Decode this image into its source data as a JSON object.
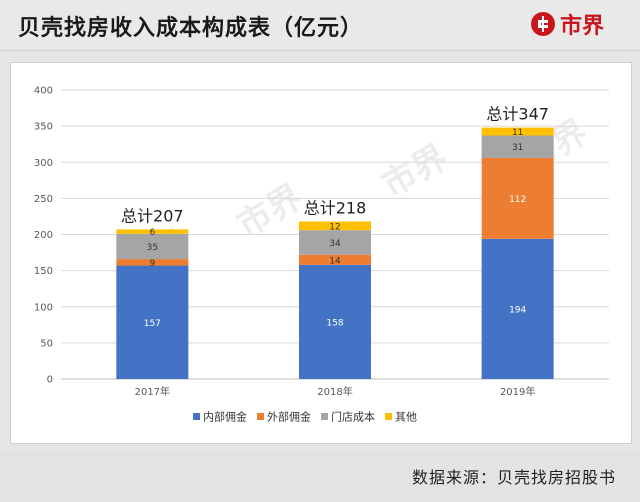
{
  "header": {
    "title": "贝壳找房收入成本构成表（亿元）"
  },
  "logo": {
    "text": "市界",
    "icon": "brand-logo-icon",
    "color": "#c8161d"
  },
  "watermark": "市界",
  "footer": {
    "source": "数据来源：贝壳找房招股书"
  },
  "chart_data": {
    "type": "bar",
    "stacked": true,
    "title": "贝壳找房收入成本构成表（亿元）",
    "xlabel": "",
    "ylabel": "",
    "ylim": [
      0,
      400
    ],
    "yticks": [
      0,
      50,
      100,
      150,
      200,
      250,
      300,
      350,
      400
    ],
    "grid": true,
    "legend": "bottom",
    "categories": [
      "2017年",
      "2018年",
      "2019年"
    ],
    "series": [
      {
        "name": "内部佣金",
        "color": "#4472c4",
        "values": [
          157,
          158,
          194
        ]
      },
      {
        "name": "外部佣金",
        "color": "#ed7d31",
        "values": [
          9,
          14,
          112
        ]
      },
      {
        "name": "门店成本",
        "color": "#a5a5a5",
        "values": [
          35,
          34,
          31
        ]
      },
      {
        "name": "其他",
        "color": "#ffc000",
        "values": [
          6,
          12,
          11
        ]
      }
    ],
    "totals": [
      "总计207",
      "总计218",
      "总计347"
    ]
  }
}
